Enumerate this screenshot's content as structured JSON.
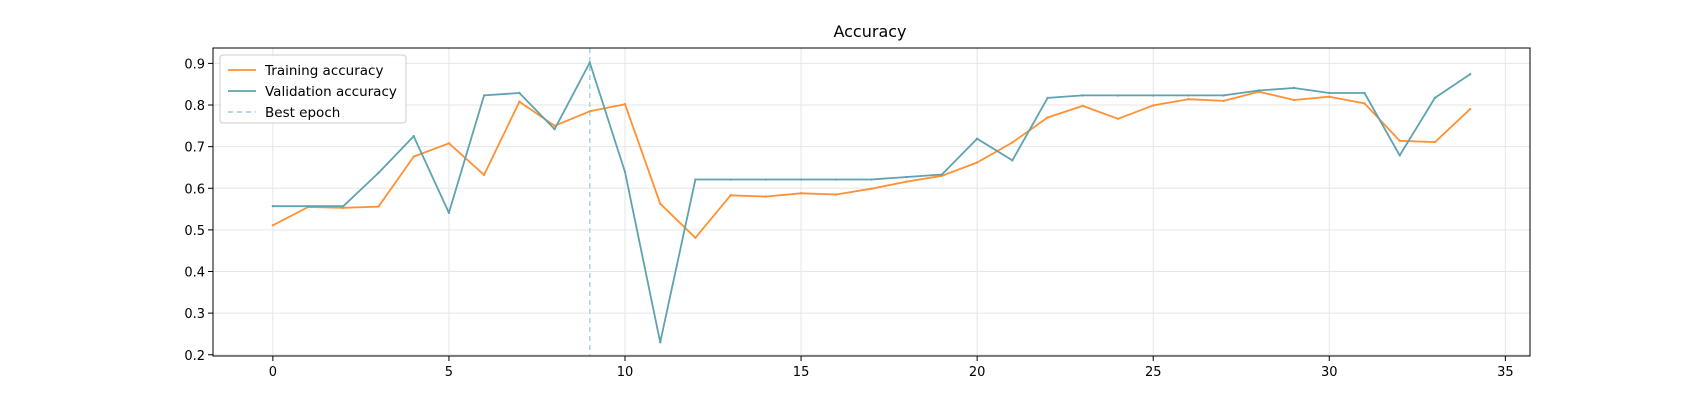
{
  "chart_data": {
    "type": "line",
    "title": "Accuracy",
    "xlabel": "",
    "ylabel": "",
    "xlim": [
      -1.7,
      35.7
    ],
    "ylim": [
      0.197,
      0.937
    ],
    "xticks": [
      0,
      5,
      10,
      15,
      20,
      25,
      30,
      35
    ],
    "yticks": [
      0.2,
      0.3,
      0.4,
      0.5,
      0.6,
      0.7,
      0.8,
      0.9
    ],
    "grid": true,
    "legend_position": "top-left",
    "x": [
      0,
      1,
      2,
      3,
      4,
      5,
      6,
      7,
      8,
      9,
      10,
      11,
      12,
      13,
      14,
      15,
      16,
      17,
      18,
      19,
      20,
      21,
      22,
      23,
      24,
      25,
      26,
      27,
      28,
      29,
      30,
      31,
      32,
      33,
      34
    ],
    "series": [
      {
        "name": "Training accuracy",
        "color": "#ff9133",
        "values": [
          0.511,
          0.555,
          0.553,
          0.556,
          0.676,
          0.708,
          0.632,
          0.808,
          0.75,
          0.785,
          0.802,
          0.563,
          0.481,
          0.583,
          0.58,
          0.588,
          0.585,
          0.599,
          0.616,
          0.63,
          0.662,
          0.71,
          0.77,
          0.798,
          0.767,
          0.799,
          0.814,
          0.81,
          0.832,
          0.812,
          0.82,
          0.804,
          0.714,
          0.711,
          0.79
        ]
      },
      {
        "name": "Validation accuracy",
        "color": "#5fa2b0",
        "values": [
          0.557,
          0.557,
          0.557,
          0.637,
          0.725,
          0.541,
          0.823,
          0.829,
          0.742,
          0.902,
          0.639,
          0.23,
          0.621,
          0.621,
          0.621,
          0.621,
          0.621,
          0.621,
          0.627,
          0.633,
          0.719,
          0.667,
          0.817,
          0.823,
          0.823,
          0.823,
          0.823,
          0.823,
          0.835,
          0.841,
          0.829,
          0.829,
          0.679,
          0.817,
          0.874
        ]
      }
    ],
    "best_epoch": {
      "name": "Best epoch",
      "x": 9,
      "color": "#a8d8dc"
    }
  }
}
